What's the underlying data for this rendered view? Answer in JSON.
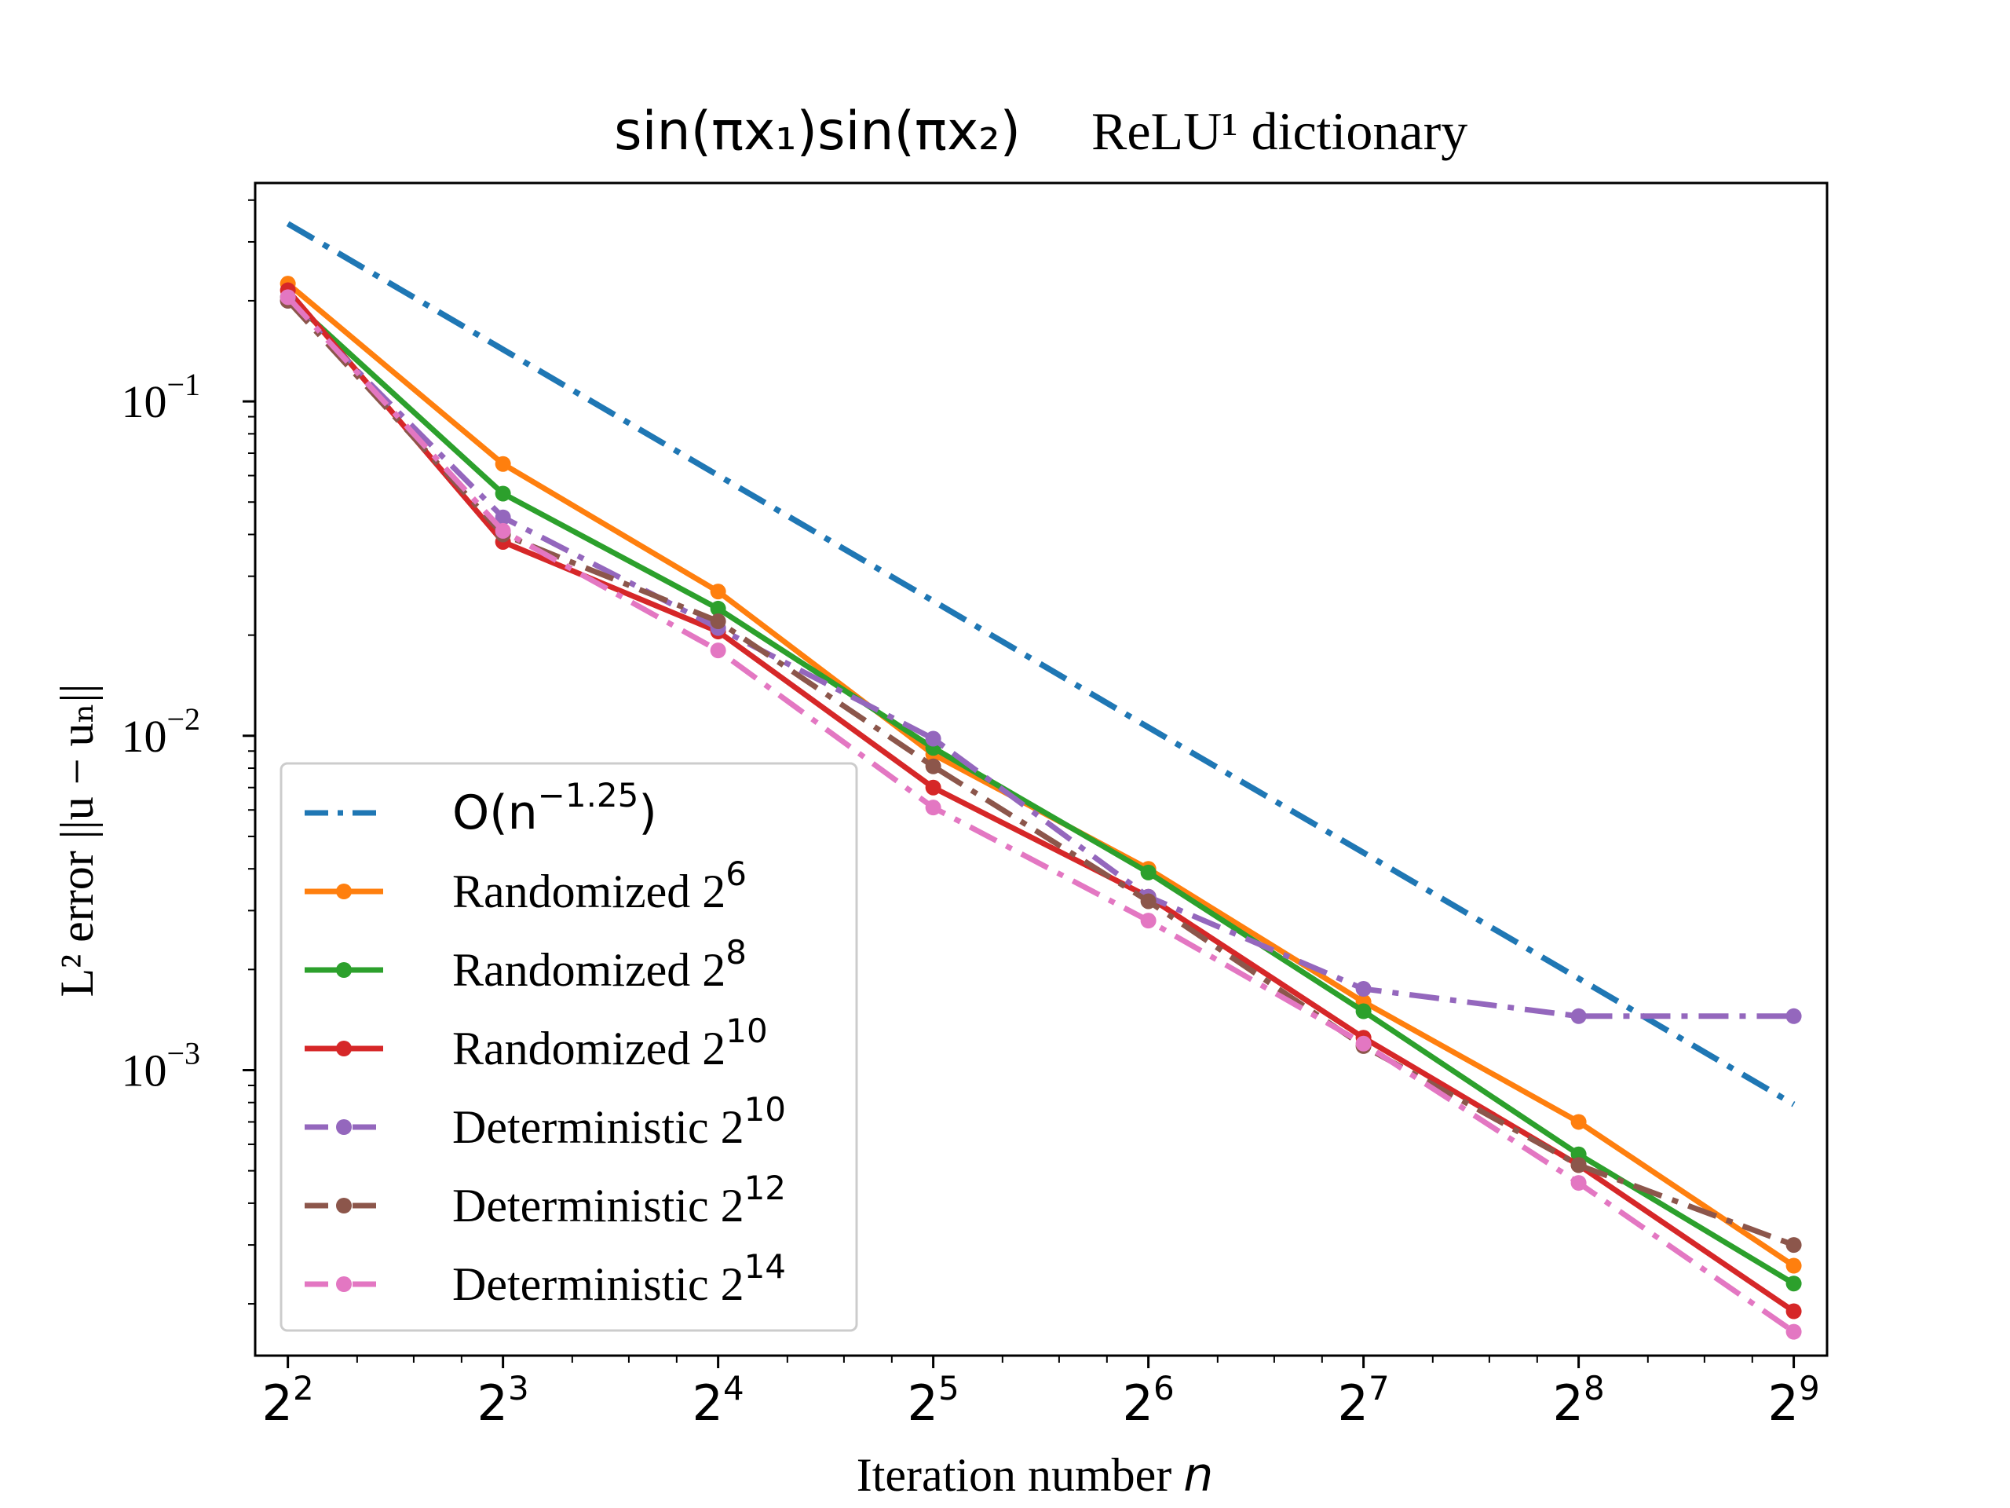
{
  "chart_data": {
    "type": "line",
    "title_math": "sin(πx₁)sin(πx₂)",
    "title_text": "ReLU¹ dictionary",
    "xlabel_text": "Iteration number",
    "xlabel_var": "n",
    "ylabel": "L² error ||u − uₙ||",
    "x_scale": "log2",
    "y_scale": "log10",
    "x": [
      4,
      8,
      16,
      32,
      64,
      128,
      256,
      512
    ],
    "x_ticks": [
      {
        "base": "2",
        "exp": "2",
        "value": 4
      },
      {
        "base": "2",
        "exp": "3",
        "value": 8
      },
      {
        "base": "2",
        "exp": "4",
        "value": 16
      },
      {
        "base": "2",
        "exp": "5",
        "value": 32
      },
      {
        "base": "2",
        "exp": "6",
        "value": 64
      },
      {
        "base": "2",
        "exp": "7",
        "value": 128
      },
      {
        "base": "2",
        "exp": "8",
        "value": 256
      },
      {
        "base": "2",
        "exp": "9",
        "value": 512
      }
    ],
    "y_ticks": [
      {
        "base": "10",
        "exp": "−1",
        "value": 0.1
      },
      {
        "base": "10",
        "exp": "−2",
        "value": 0.01
      },
      {
        "base": "10",
        "exp": "−3",
        "value": 0.001
      }
    ],
    "xlim": [
      3.6,
      570
    ],
    "ylim": [
      0.00014,
      0.45
    ],
    "grid": false,
    "legend_position": "lower-left",
    "series": [
      {
        "name": "O(n^{−1.25})",
        "legend_main": "O(n",
        "legend_sup": "−1.25",
        "legend_tail": ")",
        "style": "dashdot",
        "markers": false,
        "color": "#1f77b4",
        "values": [
          0.34,
          0.143,
          0.0601,
          0.0253,
          0.0106,
          0.00447,
          0.00188,
          0.00079
        ]
      },
      {
        "name": "Randomized 2^6",
        "legend_main": "Randomized 2",
        "legend_sup": "6",
        "legend_tail": "",
        "style": "solid",
        "markers": true,
        "color": "#ff7f0e",
        "values": [
          0.225,
          0.065,
          0.027,
          0.0088,
          0.004,
          0.0016,
          0.0007,
          0.00026
        ]
      },
      {
        "name": "Randomized 2^8",
        "legend_main": "Randomized 2",
        "legend_sup": "8",
        "legend_tail": "",
        "style": "solid",
        "markers": true,
        "color": "#2ca02c",
        "values": [
          0.205,
          0.053,
          0.024,
          0.0092,
          0.0039,
          0.0015,
          0.00056,
          0.00023
        ]
      },
      {
        "name": "Randomized 2^10",
        "legend_main": "Randomized 2",
        "legend_sup": "10",
        "legend_tail": "",
        "style": "solid",
        "markers": true,
        "color": "#d62728",
        "values": [
          0.215,
          0.038,
          0.0205,
          0.007,
          0.0033,
          0.00125,
          0.00052,
          0.00019
        ]
      },
      {
        "name": "Deterministic 2^10",
        "legend_main": "Deterministic 2",
        "legend_sup": "10",
        "legend_tail": "",
        "style": "dashdot",
        "markers": true,
        "color": "#9467bd",
        "values": [
          0.2,
          0.045,
          0.021,
          0.0098,
          0.0033,
          0.00175,
          0.00145,
          0.00145
        ]
      },
      {
        "name": "Deterministic 2^12",
        "legend_main": "Deterministic 2",
        "legend_sup": "12",
        "legend_tail": "",
        "style": "dashdot",
        "markers": true,
        "color": "#8c564b",
        "values": [
          0.2,
          0.04,
          0.022,
          0.0081,
          0.0032,
          0.00118,
          0.00052,
          0.0003
        ]
      },
      {
        "name": "Deterministic 2^14",
        "legend_main": "Deterministic 2",
        "legend_sup": "14",
        "legend_tail": "",
        "style": "dashdot",
        "markers": true,
        "color": "#e377c2",
        "values": [
          0.205,
          0.041,
          0.018,
          0.0061,
          0.0028,
          0.0012,
          0.00046,
          0.000165
        ]
      }
    ]
  }
}
